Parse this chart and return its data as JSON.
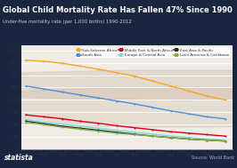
{
  "title": "Global Child Mortality Rate Has Fallen 47% Since 1990",
  "subtitle": "Under-five mortality rate (per 1,000 births) 1990-2012",
  "years": [
    1990,
    1992,
    1994,
    1996,
    1998,
    2000,
    2002,
    2004,
    2006,
    2008,
    2010,
    2012
  ],
  "xtick_labels": [
    "'90",
    "'92",
    "'94",
    "'96",
    "'98",
    "'00",
    "'02",
    "'04",
    "'06",
    "'08",
    "'10",
    "'12"
  ],
  "series": [
    {
      "name": "Sub-Saharan Africa",
      "color": "#F5A623",
      "values": [
        180,
        178,
        174,
        168,
        162,
        155,
        148,
        138,
        128,
        118,
        108,
        100
      ]
    },
    {
      "name": "South Asia",
      "color": "#4A90D9",
      "values": [
        128,
        122,
        116,
        110,
        104,
        98,
        92,
        85,
        78,
        72,
        66,
        62
      ]
    },
    {
      "name": "Middle East & North Africa",
      "color": "#D0021B",
      "values": [
        70,
        66,
        62,
        57,
        53,
        48,
        44,
        40,
        36,
        33,
        30,
        27
      ]
    },
    {
      "name": "Europe & Central Asia",
      "color": "#7ED8D8",
      "values": [
        60,
        55,
        51,
        47,
        43,
        39,
        35,
        31,
        27,
        24,
        21,
        19
      ]
    },
    {
      "name": "East Asia & Pacific",
      "color": "#2C2C2C",
      "values": [
        57,
        52,
        47,
        43,
        39,
        35,
        31,
        27,
        24,
        21,
        19,
        17
      ]
    },
    {
      "name": "Latin America & Caribbean",
      "color": "#7CB342",
      "values": [
        55,
        50,
        45,
        41,
        37,
        33,
        30,
        27,
        24,
        21,
        19,
        17
      ]
    }
  ],
  "ylim": [
    0,
    210
  ],
  "yticks": [
    0,
    25,
    50,
    75,
    100,
    125,
    150,
    175,
    200
  ],
  "header_color": "#1a2540",
  "plot_bg": "#f0ebe4",
  "footer_color": "#1a2540",
  "source_text": "Source: World Bank",
  "watermark_color": "#ccbbaa"
}
